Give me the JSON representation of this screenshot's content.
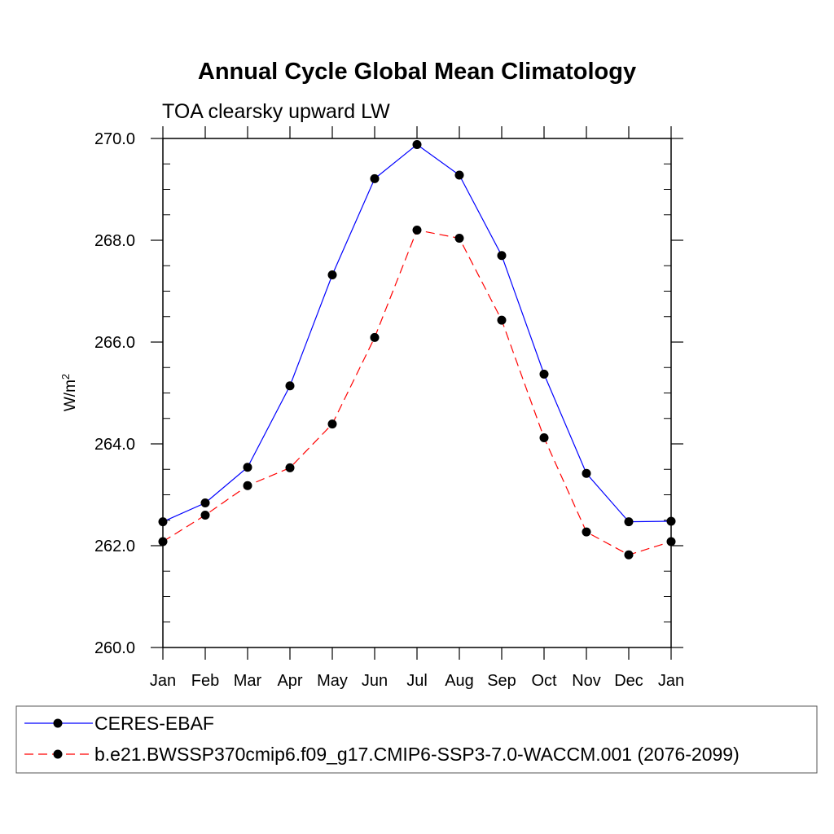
{
  "chart_data": {
    "type": "line",
    "title": "Annual Cycle Global Mean Climatology",
    "subtitle": "TOA clearsky upward LW",
    "ylabel_base": "W/m",
    "ylabel_sup": "2",
    "xlabel": "",
    "categories": [
      "Jan",
      "Feb",
      "Mar",
      "Apr",
      "May",
      "Jun",
      "Jul",
      "Aug",
      "Sep",
      "Oct",
      "Nov",
      "Dec",
      "Jan"
    ],
    "ylim": [
      260.0,
      270.0
    ],
    "yticks": [
      260.0,
      262.0,
      264.0,
      266.0,
      268.0,
      270.0
    ],
    "ytick_labels": [
      "260.0",
      "262.0",
      "264.0",
      "266.0",
      "268.0",
      "270.0"
    ],
    "series": [
      {
        "name": "CERES-EBAF",
        "color": "#0000ff",
        "dash": "solid",
        "values": [
          262.47,
          262.84,
          263.54,
          265.14,
          267.32,
          269.21,
          269.88,
          269.28,
          267.7,
          265.37,
          263.42,
          262.47,
          262.48
        ]
      },
      {
        "name": "b.e21.BWSSP370cmip6.f09_g17.CMIP6-SSP3-7.0-WACCM.001 (2076-2099)",
        "color": "#ff0000",
        "dash": "dashed",
        "values": [
          262.08,
          262.6,
          263.18,
          263.53,
          264.39,
          266.09,
          268.2,
          268.04,
          266.43,
          264.12,
          262.27,
          261.82,
          262.08
        ]
      }
    ]
  }
}
